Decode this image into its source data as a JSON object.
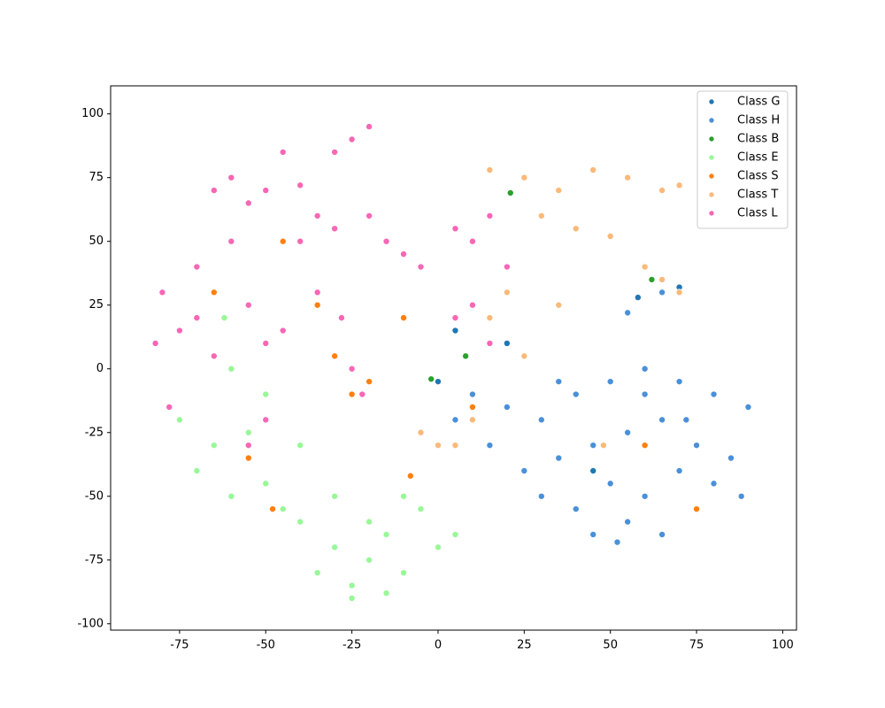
{
  "chart_data": {
    "type": "scatter",
    "xlim": [
      -95,
      104
    ],
    "ylim": [
      -102.5,
      111
    ],
    "xticks": [
      -75,
      -50,
      -25,
      0,
      25,
      50,
      75,
      100
    ],
    "yticks": [
      -100,
      -75,
      -50,
      -25,
      0,
      25,
      50,
      75,
      100
    ],
    "grid": false,
    "legend": "upper right",
    "series": [
      {
        "name": "Class G",
        "color": "#1f77b4",
        "x": [
          0,
          5,
          20,
          58,
          70,
          45
        ],
        "y": [
          -5,
          15,
          10,
          28,
          32,
          -40
        ]
      },
      {
        "name": "Class H",
        "color": "#4a90d9",
        "x": [
          20,
          30,
          40,
          50,
          60,
          70,
          80,
          90,
          25,
          35,
          45,
          55,
          65,
          75,
          85,
          15,
          40,
          50,
          60,
          70,
          80,
          88,
          45,
          55,
          65,
          75,
          30,
          60,
          72,
          52,
          10,
          5,
          35,
          55,
          65
        ],
        "y": [
          -15,
          -20,
          -10,
          -5,
          0,
          -5,
          -10,
          -15,
          -40,
          -35,
          -30,
          -25,
          -20,
          -30,
          -35,
          -30,
          -55,
          -45,
          -50,
          -40,
          -45,
          -50,
          -65,
          -60,
          -65,
          -55,
          -50,
          -10,
          -20,
          -68,
          -10,
          -20,
          -5,
          22,
          30
        ]
      },
      {
        "name": "Class B",
        "color": "#2ca02c",
        "x": [
          21,
          -2,
          62,
          8
        ],
        "y": [
          69,
          -4,
          35,
          5
        ]
      },
      {
        "name": "Class E",
        "color": "#98f898",
        "x": [
          -70,
          -60,
          -50,
          -40,
          -30,
          -20,
          -10,
          0,
          5,
          -35,
          -25,
          -15,
          -5,
          -45,
          -55,
          -65,
          -30,
          -20,
          -10,
          -40,
          -75,
          -55,
          -50,
          -60,
          -25,
          -15,
          -62
        ],
        "y": [
          -40,
          -50,
          -45,
          -60,
          -70,
          -75,
          -80,
          -70,
          -65,
          -80,
          -85,
          -88,
          -55,
          -55,
          -35,
          -30,
          -50,
          -60,
          -50,
          -30,
          -20,
          -25,
          -10,
          0,
          -90,
          -65,
          20
        ]
      },
      {
        "name": "Class S",
        "color": "#ff7f0e",
        "x": [
          -25,
          -20,
          -30,
          -55,
          -48,
          -8,
          60,
          75,
          -10,
          -35,
          10,
          -45,
          -65
        ],
        "y": [
          -10,
          -5,
          5,
          -35,
          -55,
          -42,
          -30,
          -55,
          20,
          25,
          -15,
          50,
          30
        ]
      },
      {
        "name": "Class T",
        "color": "#fbb97a",
        "x": [
          15,
          25,
          35,
          45,
          55,
          65,
          70,
          30,
          40,
          20,
          35,
          50,
          15,
          5,
          -5,
          0,
          60,
          65,
          70,
          25,
          10,
          48
        ],
        "y": [
          78,
          75,
          70,
          78,
          75,
          70,
          72,
          60,
          55,
          30,
          25,
          52,
          20,
          -30,
          -25,
          -30,
          40,
          35,
          30,
          5,
          -20,
          -30
        ]
      },
      {
        "name": "Class L",
        "color": "#f767b5",
        "x": [
          -25,
          -20,
          -30,
          -45,
          -60,
          -65,
          -55,
          -50,
          -40,
          -35,
          -30,
          -20,
          -15,
          -10,
          -5,
          -80,
          -82,
          -75,
          -70,
          -65,
          -55,
          -50,
          -45,
          -28,
          -25,
          -22,
          -35,
          5,
          10,
          15,
          20,
          -40,
          -60,
          -70,
          -78,
          -55,
          -50,
          10,
          5,
          15
        ],
        "y": [
          90,
          95,
          85,
          85,
          75,
          70,
          65,
          70,
          72,
          60,
          55,
          60,
          50,
          45,
          40,
          30,
          10,
          15,
          20,
          5,
          25,
          10,
          15,
          20,
          0,
          -10,
          30,
          55,
          50,
          60,
          40,
          50,
          50,
          40,
          -15,
          -30,
          -20,
          25,
          20,
          10
        ]
      }
    ]
  }
}
